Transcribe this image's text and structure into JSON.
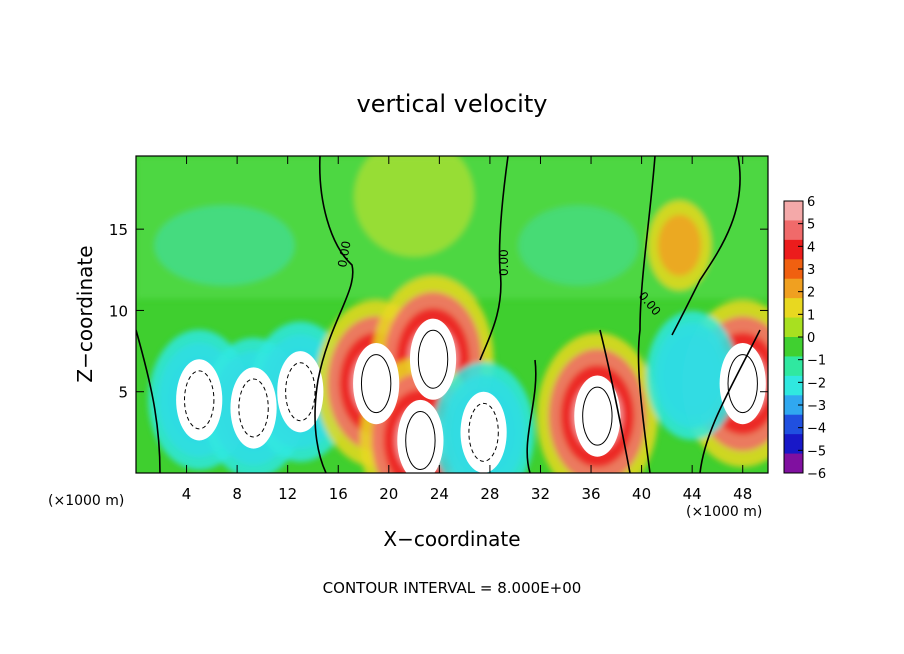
{
  "chart_data": {
    "type": "heatmap",
    "title": "vertical velocity",
    "xlabel": "X−coordinate",
    "ylabel": "Z−coordinate",
    "x_units": "(×1000 m)",
    "z_units": "(×1000 m)",
    "footer": "CONTOUR INTERVAL = 8.000E+00",
    "xlim": [
      0,
      50
    ],
    "ylim": [
      0,
      19.5
    ],
    "x_ticks": [
      "4",
      "8",
      "12",
      "16",
      "20",
      "24",
      "28",
      "32",
      "36",
      "40",
      "44",
      "48"
    ],
    "y_ticks": [
      "5",
      "10",
      "15"
    ],
    "colorbar": {
      "range": [
        -6,
        6
      ],
      "tick_labels": [
        "6",
        "5",
        "4",
        "3",
        "2",
        "1",
        "0",
        "−1",
        "−2",
        "−3",
        "−4",
        "−5",
        "−6"
      ],
      "colors": [
        "#f4a9a9",
        "#f06a6a",
        "#ec1c1c",
        "#f06010",
        "#f0a020",
        "#e8d820",
        "#a8e020",
        "#40d030",
        "#30e8a0",
        "#30e8e0",
        "#30a8f0",
        "#2050e0",
        "#1818c8",
        "#8010a0"
      ]
    },
    "contour_labels": [
      "0.00",
      "0.00",
      "0.00"
    ],
    "features": [
      {
        "kind": "downdraft",
        "x": 5.0,
        "z": 4.5,
        "w_min": -6
      },
      {
        "kind": "downdraft",
        "x": 9.3,
        "z": 4.0,
        "w_min": -6
      },
      {
        "kind": "downdraft",
        "x": 13.0,
        "z": 5.0,
        "w_min": -6
      },
      {
        "kind": "updraft",
        "x": 19.0,
        "z": 5.5,
        "w_max": 6
      },
      {
        "kind": "updraft",
        "x": 23.5,
        "z": 7.0,
        "w_max": 6
      },
      {
        "kind": "updraft",
        "x": 22.5,
        "z": 2.0,
        "w_max": 6
      },
      {
        "kind": "downdraft",
        "x": 27.5,
        "z": 2.5,
        "w_min": -6
      },
      {
        "kind": "updraft",
        "x": 36.5,
        "z": 3.5,
        "w_max": 6
      },
      {
        "kind": "updraft",
        "x": 43.0,
        "z": 14.0,
        "w_max": 3
      },
      {
        "kind": "updraft",
        "x": 48.0,
        "z": 5.5,
        "w_max": 6
      },
      {
        "kind": "downdraft",
        "x": 44.0,
        "z": 6.0,
        "w_min": -4
      }
    ]
  }
}
